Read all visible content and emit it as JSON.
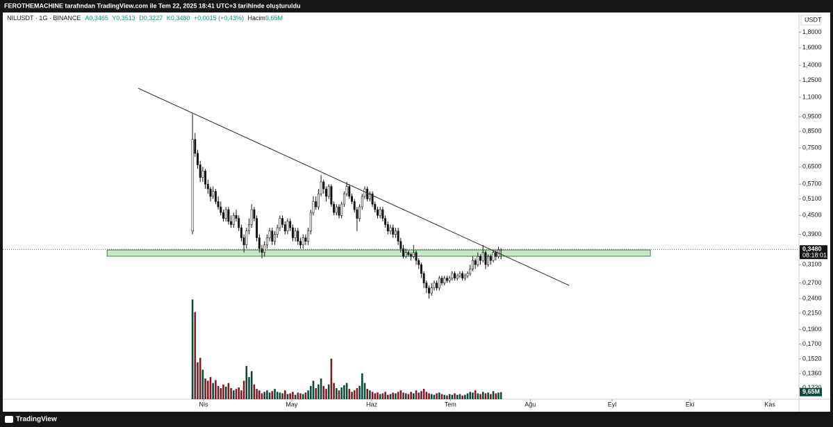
{
  "header": {
    "caption": "FEROTHEMACHINE tarafından TradingView.com ile Tem 22, 2025 18:41 UTC+3 tarihinde oluşturuldu",
    "brand": "TradingView"
  },
  "chart_data": {
    "type": "candlestick",
    "legend": {
      "symbol": "NILUSDT · 1G · BINANCE",
      "open": "A0,3465",
      "high": "Y0,3513",
      "low": "D0,3227",
      "close": "K0,3480",
      "change": "+0,0015 (+0,43%)",
      "volume": "Hacim"
    },
    "currency": "USDT",
    "log": true,
    "grid": false,
    "xlim": [
      -73.8,
      235.9
    ],
    "xticks": [
      {
        "value": 4.3,
        "label": "Nis"
      },
      {
        "value": 38.6,
        "label": "May"
      },
      {
        "value": 69.7,
        "label": "Haz"
      },
      {
        "value": 100.3,
        "label": "Tem"
      },
      {
        "value": 131.4,
        "label": "Ağu"
      },
      {
        "value": 163.2,
        "label": "Eyl"
      },
      {
        "value": 193.5,
        "label": "Eki"
      },
      {
        "value": 224.6,
        "label": "Kas"
      }
    ],
    "ylim": [
      0.112,
      2.09
    ],
    "yticks": [
      {
        "value": 1.8,
        "label": "1,8000"
      },
      {
        "value": 1.6,
        "label": "1,6000"
      },
      {
        "value": 1.4,
        "label": "1,4000"
      },
      {
        "value": 1.25,
        "label": "1,2500"
      },
      {
        "value": 1.1,
        "label": "1,1000"
      },
      {
        "value": 0.95,
        "label": "0,9500"
      },
      {
        "value": 0.85,
        "label": "0,8500"
      },
      {
        "value": 0.75,
        "label": "0,7500"
      },
      {
        "value": 0.65,
        "label": "0,6500"
      },
      {
        "value": 0.57,
        "label": "0,5700"
      },
      {
        "value": 0.51,
        "label": "0,5100"
      },
      {
        "value": 0.45,
        "label": "0,4500"
      },
      {
        "value": 0.39,
        "label": "0,3900"
      },
      {
        "value": 0.31,
        "label": "0,3100"
      },
      {
        "value": 0.27,
        "label": "0,2700"
      },
      {
        "value": 0.24,
        "label": "0,2400"
      },
      {
        "value": 0.215,
        "label": "0,2150"
      },
      {
        "value": 0.19,
        "label": "0,1900"
      },
      {
        "value": 0.17,
        "label": "0,1700"
      },
      {
        "value": 0.152,
        "label": "0,1520"
      },
      {
        "value": 0.136,
        "label": "0,1360"
      },
      {
        "value": 0.122,
        "label": "0,1220"
      }
    ],
    "candle_colors": {
      "up": "#ffffff",
      "down": "#131313",
      "border": "#131313"
    },
    "open": [
      0.4,
      0.8,
      0.72,
      0.66,
      0.6,
      0.63,
      0.57,
      0.55,
      0.52,
      0.54,
      0.5,
      0.48,
      0.46,
      0.44,
      0.47,
      0.43,
      0.42,
      0.45,
      0.44,
      0.41,
      0.38,
      0.36,
      0.4,
      0.42,
      0.47,
      0.44,
      0.38,
      0.35,
      0.34,
      0.36,
      0.38,
      0.4,
      0.37,
      0.39,
      0.41,
      0.44,
      0.42,
      0.4,
      0.43,
      0.41,
      0.38,
      0.4,
      0.37,
      0.36,
      0.38,
      0.37,
      0.4,
      0.46,
      0.5,
      0.48,
      0.53,
      0.58,
      0.55,
      0.52,
      0.56,
      0.49,
      0.46,
      0.48,
      0.45,
      0.49,
      0.53,
      0.56,
      0.52,
      0.5,
      0.47,
      0.44,
      0.48,
      0.52,
      0.55,
      0.51,
      0.53,
      0.49,
      0.47,
      0.45,
      0.47,
      0.44,
      0.42,
      0.4,
      0.41,
      0.39,
      0.4,
      0.37,
      0.35,
      0.33,
      0.34,
      0.335,
      0.33,
      0.34,
      0.32,
      0.31,
      0.29,
      0.27,
      0.26,
      0.25,
      0.26,
      0.27,
      0.26,
      0.28,
      0.27,
      0.28,
      0.275,
      0.28,
      0.29,
      0.28,
      0.285,
      0.29,
      0.28,
      0.285,
      0.29,
      0.3,
      0.32,
      0.31,
      0.33,
      0.32,
      0.34,
      0.31,
      0.33,
      0.32,
      0.34,
      0.33,
      0.3465
    ],
    "high": [
      0.97,
      0.84,
      0.74,
      0.68,
      0.65,
      0.64,
      0.59,
      0.56,
      0.56,
      0.55,
      0.52,
      0.5,
      0.47,
      0.48,
      0.48,
      0.45,
      0.46,
      0.47,
      0.45,
      0.42,
      0.39,
      0.41,
      0.44,
      0.49,
      0.48,
      0.45,
      0.39,
      0.36,
      0.37,
      0.39,
      0.41,
      0.41,
      0.4,
      0.42,
      0.45,
      0.45,
      0.43,
      0.44,
      0.44,
      0.42,
      0.41,
      0.41,
      0.38,
      0.39,
      0.39,
      0.41,
      0.47,
      0.52,
      0.52,
      0.55,
      0.61,
      0.59,
      0.56,
      0.57,
      0.57,
      0.5,
      0.49,
      0.49,
      0.5,
      0.54,
      0.58,
      0.57,
      0.53,
      0.51,
      0.48,
      0.49,
      0.53,
      0.56,
      0.56,
      0.54,
      0.54,
      0.5,
      0.48,
      0.48,
      0.48,
      0.45,
      0.43,
      0.42,
      0.42,
      0.41,
      0.41,
      0.38,
      0.36,
      0.35,
      0.345,
      0.34,
      0.36,
      0.345,
      0.325,
      0.315,
      0.295,
      0.275,
      0.265,
      0.27,
      0.275,
      0.275,
      0.285,
      0.285,
      0.285,
      0.285,
      0.285,
      0.295,
      0.295,
      0.29,
      0.295,
      0.295,
      0.29,
      0.295,
      0.31,
      0.33,
      0.325,
      0.34,
      0.335,
      0.36,
      0.345,
      0.335,
      0.335,
      0.345,
      0.345,
      0.355,
      0.3513
    ],
    "low": [
      0.39,
      0.7,
      0.64,
      0.58,
      0.58,
      0.55,
      0.53,
      0.5,
      0.51,
      0.49,
      0.47,
      0.45,
      0.43,
      0.43,
      0.42,
      0.41,
      0.41,
      0.43,
      0.4,
      0.37,
      0.34,
      0.35,
      0.39,
      0.41,
      0.43,
      0.37,
      0.34,
      0.325,
      0.33,
      0.35,
      0.37,
      0.36,
      0.36,
      0.38,
      0.4,
      0.41,
      0.39,
      0.39,
      0.4,
      0.37,
      0.37,
      0.36,
      0.35,
      0.35,
      0.36,
      0.36,
      0.39,
      0.45,
      0.47,
      0.47,
      0.52,
      0.53,
      0.5,
      0.51,
      0.48,
      0.45,
      0.45,
      0.44,
      0.44,
      0.48,
      0.52,
      0.51,
      0.49,
      0.46,
      0.4,
      0.43,
      0.47,
      0.51,
      0.5,
      0.5,
      0.48,
      0.46,
      0.44,
      0.44,
      0.43,
      0.41,
      0.39,
      0.39,
      0.38,
      0.38,
      0.36,
      0.34,
      0.325,
      0.325,
      0.33,
      0.32,
      0.325,
      0.31,
      0.3,
      0.28,
      0.26,
      0.25,
      0.24,
      0.245,
      0.255,
      0.255,
      0.255,
      0.265,
      0.265,
      0.27,
      0.27,
      0.275,
      0.275,
      0.275,
      0.28,
      0.275,
      0.275,
      0.28,
      0.285,
      0.295,
      0.3,
      0.305,
      0.31,
      0.315,
      0.3,
      0.305,
      0.31,
      0.315,
      0.32,
      0.325,
      0.3227
    ],
    "close": [
      0.8,
      0.72,
      0.66,
      0.6,
      0.63,
      0.57,
      0.55,
      0.52,
      0.54,
      0.5,
      0.48,
      0.46,
      0.44,
      0.47,
      0.43,
      0.42,
      0.45,
      0.44,
      0.41,
      0.38,
      0.36,
      0.4,
      0.42,
      0.47,
      0.44,
      0.38,
      0.35,
      0.34,
      0.36,
      0.38,
      0.4,
      0.37,
      0.39,
      0.41,
      0.44,
      0.42,
      0.4,
      0.43,
      0.41,
      0.38,
      0.4,
      0.37,
      0.36,
      0.38,
      0.37,
      0.4,
      0.46,
      0.5,
      0.48,
      0.53,
      0.58,
      0.55,
      0.52,
      0.56,
      0.49,
      0.46,
      0.48,
      0.45,
      0.49,
      0.53,
      0.56,
      0.52,
      0.5,
      0.47,
      0.44,
      0.48,
      0.52,
      0.55,
      0.51,
      0.53,
      0.49,
      0.47,
      0.45,
      0.47,
      0.44,
      0.42,
      0.4,
      0.41,
      0.39,
      0.4,
      0.37,
      0.35,
      0.33,
      0.34,
      0.335,
      0.33,
      0.34,
      0.32,
      0.31,
      0.29,
      0.27,
      0.26,
      0.25,
      0.26,
      0.27,
      0.26,
      0.28,
      0.27,
      0.28,
      0.275,
      0.28,
      0.29,
      0.28,
      0.285,
      0.29,
      0.28,
      0.285,
      0.29,
      0.3,
      0.32,
      0.31,
      0.33,
      0.32,
      0.34,
      0.31,
      0.33,
      0.32,
      0.34,
      0.33,
      0.3465,
      0.348
    ],
    "last_price": {
      "value": 0.348,
      "label": "0,3480"
    },
    "countdown": "08:18:01",
    "volume": {
      "ylim": [
        0,
        141000000.0
      ],
      "colors": {
        "up": "#0b4a3a",
        "down": "#7d1a22"
      },
      "last_label": "9,65M",
      "values": [
        135000000.0,
        118000000.0,
        50000000.0,
        56000000.0,
        40000000.0,
        28000000.0,
        25000000.0,
        30000000.0,
        22000000.0,
        26000000.0,
        18000000.0,
        15000000.0,
        20000000.0,
        17000000.0,
        22000000.0,
        15000000.0,
        12000000.0,
        14000000.0,
        16000000.0,
        12000000.0,
        25000000.0,
        45000000.0,
        30000000.0,
        38000000.0,
        20000000.0,
        14000000.0,
        12000000.0,
        8000000.0,
        10000000.0,
        12000000.0,
        9000000.0,
        11000000.0,
        14000000.0,
        10000000.0,
        9000000.0,
        8000000.0,
        12000000.0,
        7000000.0,
        8000000.0,
        10000000.0,
        6000000.0,
        9000000.0,
        8000000.0,
        7000000.0,
        9000000.0,
        12000000.0,
        18000000.0,
        25000000.0,
        15000000.0,
        20000000.0,
        28000000.0,
        18000000.0,
        14000000.0,
        20000000.0,
        55000000.0,
        22000000.0,
        15000000.0,
        12000000.0,
        16000000.0,
        19000000.0,
        22000000.0,
        14000000.0,
        10000000.0,
        12000000.0,
        15000000.0,
        18000000.0,
        35000000.0,
        22000000.0,
        14000000.0,
        12000000.0,
        10000000.0,
        8000000.0,
        9000000.0,
        7000000.0,
        8000000.0,
        10000000.0,
        6000000.0,
        7000000.0,
        9000000.0,
        8000000.0,
        10000000.0,
        12000000.0,
        9000000.0,
        8000000.0,
        7000000.0,
        10000000.0,
        8000000.0,
        12000000.0,
        9000000.0,
        11000000.0,
        14000000.0,
        10000000.0,
        8000000.0,
        7000000.0,
        6000000.0,
        8000000.0,
        9000000.0,
        7000000.0,
        6000000.0,
        5000000.0,
        7000000.0,
        6000000.0,
        8000000.0,
        6000000.0,
        7000000.0,
        5000000.0,
        6000000.0,
        8000000.0,
        10000000.0,
        9000000.0,
        12000000.0,
        8000000.0,
        7000000.0,
        10000000.0,
        8000000.0,
        9000000.0,
        7000000.0,
        11000000.0,
        8000000.0,
        9000000.0,
        9650000.0
      ]
    },
    "trendline": {
      "start": [
        -21.1,
        1.178
      ],
      "end": [
        146.5,
        0.265
      ],
      "color": "#2a2a2a"
    },
    "zone": {
      "x": [
        -33.2,
        178.1
      ],
      "y": [
        0.3305,
        0.3465
      ],
      "color": "#c8e6c9",
      "border": "#3f7f3f"
    }
  }
}
